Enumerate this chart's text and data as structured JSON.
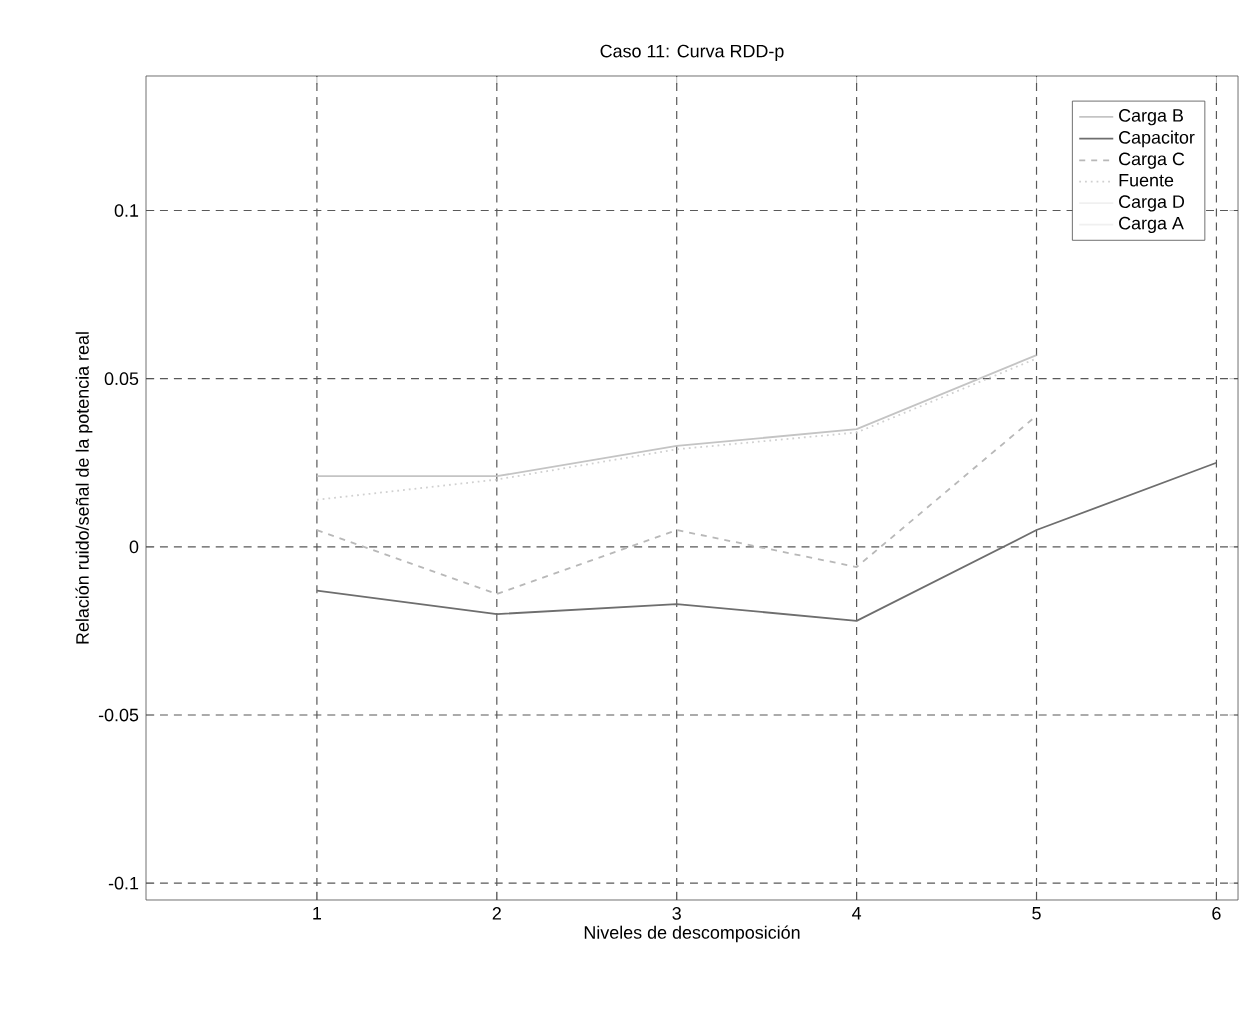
{
  "chart_data": {
    "type": "line",
    "title": "Caso 11: Curva RDD-p",
    "xlabel": "Niveles de descomposición",
    "ylabel": "Relación ruido/señal de la potencia real",
    "x": [
      1,
      2,
      3,
      4,
      5,
      6
    ],
    "xlim": [
      0.05,
      6.12
    ],
    "ylim": [
      -0.105,
      0.14
    ],
    "xticks": [
      1,
      2,
      3,
      4,
      5,
      6
    ],
    "yticks": [
      -0.1,
      -0.05,
      0,
      0.05,
      0.1
    ],
    "grid": true,
    "legend": "top right",
    "series": [
      {
        "name": "Carga B",
        "color": "#c4c4c4",
        "line_style": "solid",
        "values": [
          0.021,
          0.021,
          0.03,
          0.035,
          0.057,
          null
        ]
      },
      {
        "name": "Capacitor",
        "color": "#6e6e6e",
        "line_style": "solid",
        "values": [
          -0.013,
          -0.02,
          -0.017,
          -0.022,
          0.005,
          0.025
        ]
      },
      {
        "name": "Carga C",
        "color": "#b8b8b8",
        "line_style": "dashed",
        "values": [
          0.005,
          -0.014,
          0.005,
          -0.006,
          0.039,
          null
        ]
      },
      {
        "name": "Fuente",
        "color": "#d0d0d0",
        "line_style": "dotted",
        "values": [
          0.014,
          0.02,
          0.029,
          0.034,
          0.056,
          null
        ]
      },
      {
        "name": "Carga D",
        "color": "#f0f0f0",
        "line_style": "solid",
        "values": [
          null,
          null,
          null,
          null,
          null,
          null
        ]
      },
      {
        "name": "Carga A",
        "color": "#f0f0f0",
        "line_style": "solid",
        "values": [
          null,
          null,
          null,
          null,
          null,
          null
        ]
      }
    ]
  }
}
